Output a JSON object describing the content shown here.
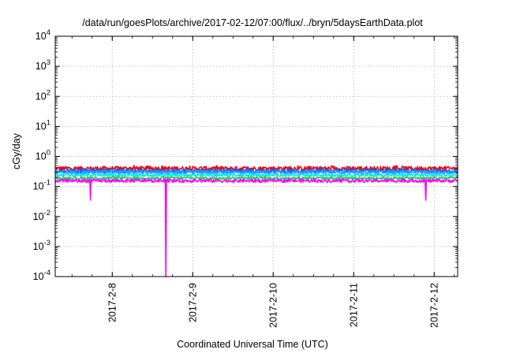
{
  "chart_data": {
    "type": "line",
    "title": "/data/run/goesPlots/archive/2017-02-12/07:00/flux/../bryn/5daysEarthData.plot",
    "xlabel": "Coordinated Universal Time (UTC)",
    "ylabel": "cGy/day",
    "yscale": "log",
    "ylim": [
      0.0001,
      10000
    ],
    "y_ticks": [
      {
        "value": 0.0001,
        "base": "10",
        "exp": "-4"
      },
      {
        "value": 0.001,
        "base": "10",
        "exp": "-3"
      },
      {
        "value": 0.01,
        "base": "10",
        "exp": "-2"
      },
      {
        "value": 0.1,
        "base": "10",
        "exp": "-1"
      },
      {
        "value": 1,
        "base": "10",
        "exp": "0"
      },
      {
        "value": 10,
        "base": "10",
        "exp": "1"
      },
      {
        "value": 100,
        "base": "10",
        "exp": "2"
      },
      {
        "value": 1000,
        "base": "10",
        "exp": "3"
      },
      {
        "value": 10000,
        "base": "10",
        "exp": "4"
      }
    ],
    "xlim": [
      "2017-02-07T07:00",
      "2017-02-12T07:00"
    ],
    "x_ticks": [
      {
        "value": "2017-02-08T00:00",
        "label": "2017-2-8"
      },
      {
        "value": "2017-02-09T00:00",
        "label": "2017-2-9"
      },
      {
        "value": "2017-02-10T00:00",
        "label": "2017-2-10"
      },
      {
        "value": "2017-02-11T00:00",
        "label": "2017-2-11"
      },
      {
        "value": "2017-02-12T00:00",
        "label": "2017-2-12"
      }
    ],
    "grid": true,
    "legend": "none",
    "series": [
      {
        "color": "#ff0000",
        "level": 0.4,
        "noise": 0.16
      },
      {
        "color": "#2255ff",
        "level": 0.33,
        "noise": 0.16
      },
      {
        "color": "#1aa0ff",
        "level": 0.3,
        "noise": 0.12
      },
      {
        "color": "#00e5ee",
        "level": 0.24,
        "noise": 0.1
      },
      {
        "color": "#22cc55",
        "level": 0.19,
        "noise": 0.1
      },
      {
        "color": "#ff00ff",
        "level": 0.155,
        "noise": 0.12,
        "dropouts": [
          {
            "x": "2017-02-07T17:30",
            "y": 0.035
          },
          {
            "x": "2017-02-08T16:00",
            "y": 0.0001
          },
          {
            "x": "2017-02-11T21:30",
            "y": 0.035
          }
        ]
      }
    ]
  }
}
